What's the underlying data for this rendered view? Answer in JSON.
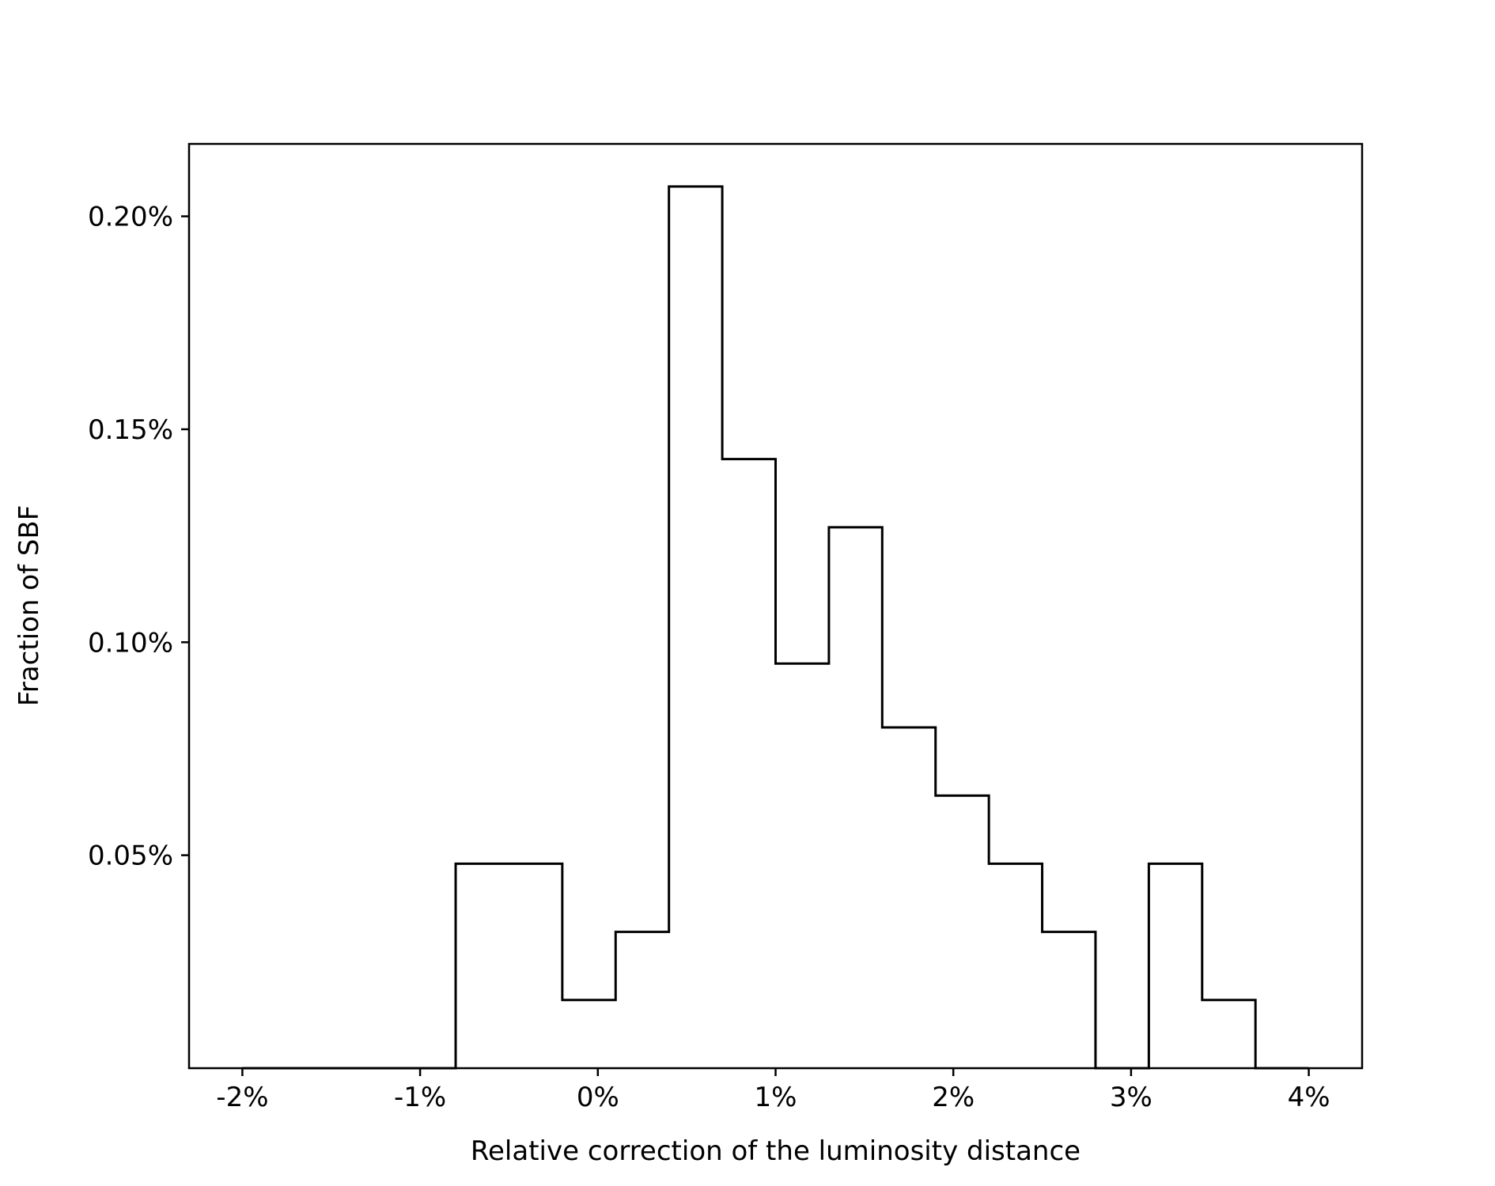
{
  "chart_data": {
    "type": "histogram",
    "title": "",
    "xlabel": "Relative correction of the luminosity distance",
    "ylabel": "Fraction of SBF",
    "xlim": [
      -2.3,
      4.3
    ],
    "ylim": [
      0.0,
      0.00217
    ],
    "grid": false,
    "legend": null,
    "xticks": [
      {
        "value": -2,
        "label": "-2%"
      },
      {
        "value": -1,
        "label": "-1%"
      },
      {
        "value": 0,
        "label": "0%"
      },
      {
        "value": 1,
        "label": "1%"
      },
      {
        "value": 2,
        "label": "2%"
      },
      {
        "value": 3,
        "label": "3%"
      },
      {
        "value": 4,
        "label": "4%"
      }
    ],
    "yticks": [
      {
        "value": 0.0005,
        "label": "0.05%"
      },
      {
        "value": 0.001,
        "label": "0.10%"
      },
      {
        "value": 0.0015,
        "label": "0.15%"
      },
      {
        "value": 0.002,
        "label": "0.20%"
      }
    ],
    "bin_edges": [
      -2.0,
      -1.7,
      -1.4,
      -1.1,
      -0.8,
      -0.5,
      -0.2,
      0.1,
      0.4,
      0.7,
      1.0,
      1.3,
      1.6,
      1.9,
      2.2,
      2.5,
      2.8,
      3.1,
      3.4,
      3.7,
      4.0
    ],
    "values": [
      0.0,
      0.0,
      0.0,
      0.0,
      0.00048,
      0.00048,
      0.00016,
      0.00032,
      0.00207,
      0.00143,
      0.00095,
      0.00127,
      0.0008,
      0.00064,
      0.00048,
      0.00032,
      0.0,
      0.00048,
      0.00016,
      0.0
    ],
    "style": {
      "line_color": "#000000",
      "fill": "none"
    }
  }
}
